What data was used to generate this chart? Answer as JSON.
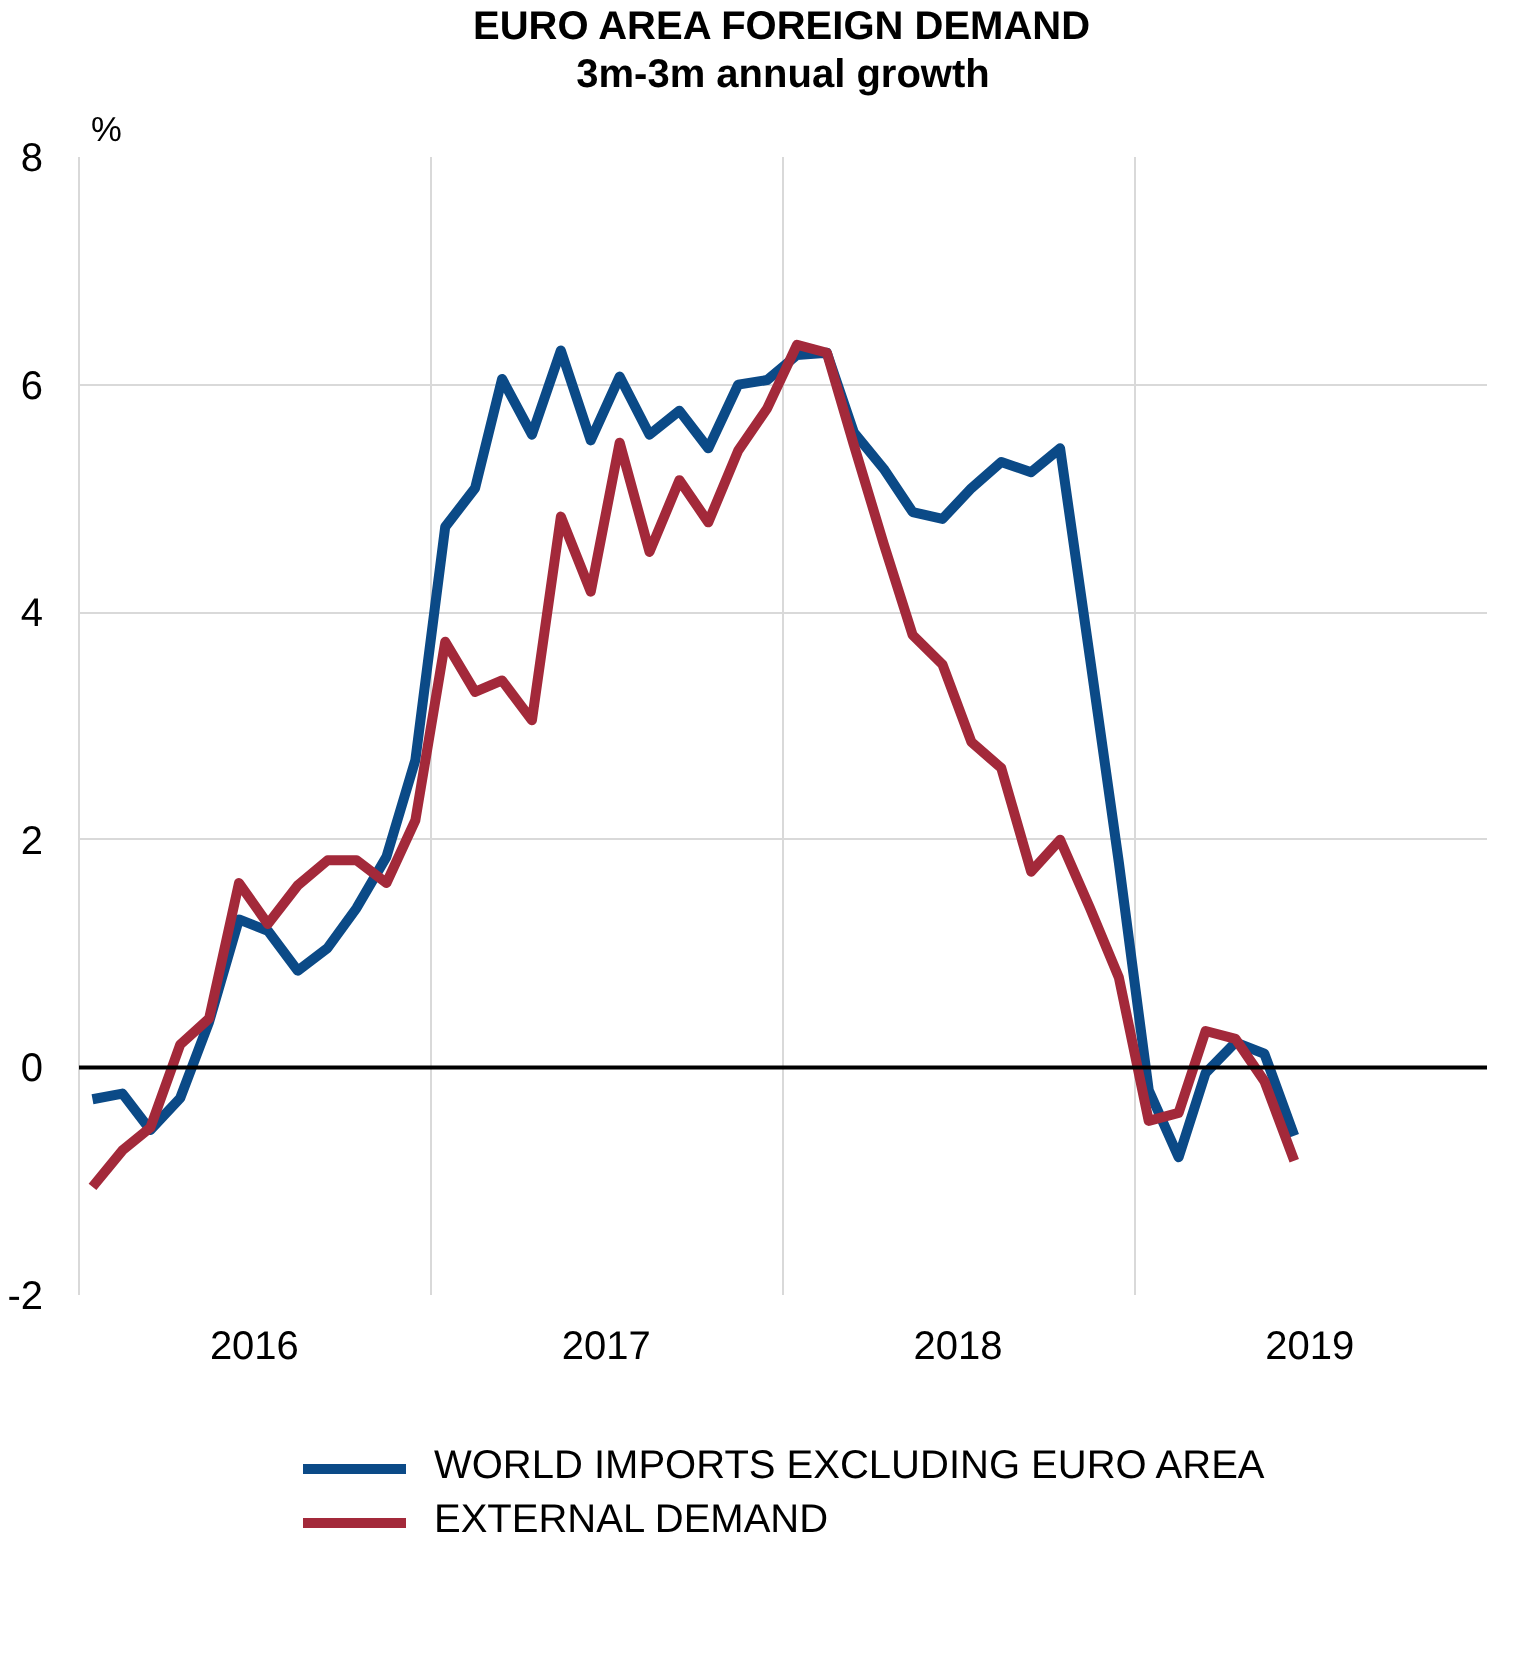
{
  "chart_data": {
    "type": "line",
    "title": "EURO AREA FOREIGN DEMAND",
    "subtitle": "3m-3m annual growth",
    "ylabel": "%",
    "x": [
      "2016-01-15",
      "2016-02-15",
      "2016-03-15",
      "2016-04-15",
      "2016-05-15",
      "2016-06-15",
      "2016-07-15",
      "2016-08-15",
      "2016-09-15",
      "2016-10-15",
      "2016-11-15",
      "2016-12-15",
      "2017-01-15",
      "2017-02-15",
      "2017-03-15",
      "2017-04-15",
      "2017-05-15",
      "2017-06-15",
      "2017-07-15",
      "2017-08-15",
      "2017-09-15",
      "2017-10-15",
      "2017-11-15",
      "2017-12-15",
      "2018-01-15",
      "2018-02-15",
      "2018-03-15",
      "2018-04-15",
      "2018-05-15",
      "2018-06-15",
      "2018-07-15",
      "2018-08-15",
      "2018-09-15",
      "2018-10-15",
      "2018-11-15",
      "2018-12-15",
      "2019-01-15",
      "2019-02-15",
      "2019-03-15",
      "2019-04-15",
      "2019-05-15",
      "2019-06-15"
    ],
    "series": [
      {
        "name": "WORLD IMPORTS EXCLUDING EURO AREA",
        "color": "#0b4a87",
        "values": [
          -0.28,
          -0.23,
          -0.55,
          -0.27,
          0.4,
          1.3,
          1.2,
          0.85,
          1.05,
          1.4,
          1.85,
          2.7,
          4.75,
          5.09,
          6.05,
          5.56,
          6.3,
          5.51,
          6.07,
          5.56,
          5.77,
          5.44,
          6.0,
          6.04,
          6.26,
          6.28,
          5.58,
          5.26,
          4.88,
          4.82,
          5.09,
          5.32,
          5.23,
          5.44,
          3.6,
          1.8,
          -0.2,
          -0.79,
          -0.05,
          0.22,
          0.12,
          -0.6
        ]
      },
      {
        "name": "EXTERNAL DEMAND",
        "color": "#a3293a",
        "values": [
          -1.05,
          -0.73,
          -0.53,
          0.2,
          0.43,
          1.62,
          1.26,
          1.6,
          1.82,
          1.82,
          1.62,
          2.17,
          3.74,
          3.3,
          3.4,
          3.05,
          4.84,
          4.18,
          5.49,
          4.53,
          5.16,
          4.79,
          5.42,
          5.79,
          6.35,
          6.28,
          5.47,
          4.6,
          3.8,
          3.54,
          2.86,
          2.63,
          1.72,
          2.0,
          1.4,
          0.79,
          -0.47,
          -0.4,
          0.32,
          0.25,
          -0.12,
          -0.82
        ]
      }
    ],
    "xlim": [
      "2016-01-01",
      "2020-01-01"
    ],
    "xticks": [
      {
        "value": "2016-07-01",
        "label": "2016"
      },
      {
        "value": "2017-01-01",
        "label": null
      },
      {
        "value": "2017-07-01",
        "label": "2017"
      },
      {
        "value": "2018-01-01",
        "label": null
      },
      {
        "value": "2018-07-01",
        "label": "2018"
      },
      {
        "value": "2019-01-01",
        "label": null
      },
      {
        "value": "2019-07-01",
        "label": "2019"
      }
    ],
    "ylim": [
      -2,
      8
    ],
    "yticks": [
      -2,
      0,
      2,
      4,
      6,
      8
    ],
    "grid": true,
    "legend": "bottom",
    "line_style": "solid",
    "marker": "none",
    "ref_lines": [
      {
        "axis": "y",
        "value": 0,
        "color": "#000000"
      }
    ]
  }
}
